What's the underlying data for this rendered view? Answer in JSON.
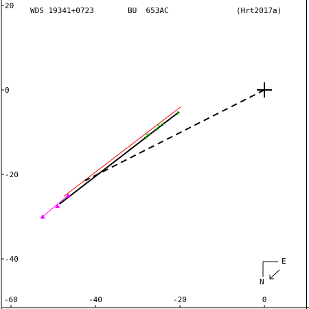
{
  "header": {
    "wds_id": "WDS 19341+0723",
    "discoverer": "BU  653AC",
    "reference": "(Hrt2017a)"
  },
  "compass": {
    "east_label": "E",
    "north_label": "N"
  },
  "chart_data": {
    "type": "scatter",
    "title": "",
    "xlabel": "",
    "ylabel": "",
    "xlim": [
      -62,
      10
    ],
    "ylim": [
      -52,
      20
    ],
    "x_ticks": [
      -60,
      -40,
      -20,
      0
    ],
    "x_tick_labels": [
      "-60",
      "-40",
      "-20",
      "0"
    ],
    "y_ticks": [
      20,
      0,
      -20,
      -40
    ],
    "y_tick_labels": [
      "20",
      "0",
      "-20",
      "-40"
    ],
    "primary": {
      "x": 0,
      "y": 0
    },
    "series": [
      {
        "kind": "green-plus",
        "color": "#00bb00",
        "points": [
          {
            "x": -20.5,
            "y": -5.5
          },
          {
            "x": -24.0,
            "y": -8.0
          },
          {
            "x": -25.0,
            "y": -8.5
          },
          {
            "x": -25.5,
            "y": -9.3
          },
          {
            "x": -27.5,
            "y": -10.5
          },
          {
            "x": -28.0,
            "y": -11.2
          }
        ]
      },
      {
        "kind": "magenta-triangle",
        "color": "#ff00ff",
        "points": [
          {
            "x": -46.5,
            "y": -25.0
          },
          {
            "x": -49.0,
            "y": -27.5
          },
          {
            "x": -52.5,
            "y": -30.0
          }
        ]
      }
    ],
    "lines": [
      {
        "kind": "orbit-red",
        "color": "#ff0000",
        "from": {
          "x": -47.5,
          "y": -25.2
        },
        "to": {
          "x": -19.8,
          "y": -4.0
        }
      },
      {
        "kind": "fit-black",
        "color": "#000000",
        "from": {
          "x": -48.5,
          "y": -27.0
        },
        "to": {
          "x": -20.2,
          "y": -5.2
        }
      },
      {
        "kind": "motion-magenta",
        "color": "#ff00ff",
        "from": {
          "x": -52.5,
          "y": -30.0
        },
        "to": {
          "x": -46.5,
          "y": -25.0
        }
      },
      {
        "kind": "dashed-link",
        "color": "#000000",
        "from": {
          "x": 0,
          "y": 0
        },
        "to": {
          "x": -42.5,
          "y": -21.5
        }
      }
    ]
  }
}
